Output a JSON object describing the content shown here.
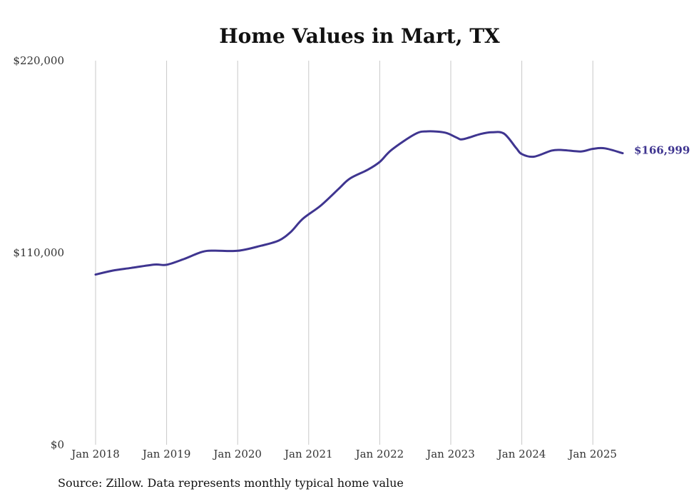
{
  "chart_data": {
    "type": "line",
    "title": "Home Values in Mart, TX",
    "xlabel": "",
    "ylabel": "",
    "ylim": [
      0,
      220000
    ],
    "y_ticks": [
      {
        "value": 0,
        "label": "$0"
      },
      {
        "value": 110000,
        "label": "$110,000"
      },
      {
        "value": 220000,
        "label": "$220,000"
      }
    ],
    "x_ticks": [
      {
        "value": 2018.0,
        "label": "Jan 2018"
      },
      {
        "value": 2019.0,
        "label": "Jan 2019"
      },
      {
        "value": 2020.0,
        "label": "Jan 2020"
      },
      {
        "value": 2021.0,
        "label": "Jan 2021"
      },
      {
        "value": 2022.0,
        "label": "Jan 2022"
      },
      {
        "value": 2023.0,
        "label": "Jan 2023"
      },
      {
        "value": 2024.0,
        "label": "Jan 2024"
      },
      {
        "value": 2025.0,
        "label": "Jan 2025"
      }
    ],
    "xlim": [
      2018.0,
      2025.42
    ],
    "grid": "vertical",
    "line_color": "#3f3590",
    "series": [
      {
        "end_label": "$166,999",
        "points": [
          [
            2018.0,
            97500
          ],
          [
            2018.25,
            99800
          ],
          [
            2018.5,
            101300
          ],
          [
            2018.83,
            103200
          ],
          [
            2019.0,
            103100
          ],
          [
            2019.25,
            106500
          ],
          [
            2019.5,
            110500
          ],
          [
            2019.67,
            111200
          ],
          [
            2020.0,
            111100
          ],
          [
            2020.33,
            114000
          ],
          [
            2020.58,
            117000
          ],
          [
            2020.75,
            122000
          ],
          [
            2020.92,
            129500
          ],
          [
            2021.17,
            137000
          ],
          [
            2021.42,
            146500
          ],
          [
            2021.58,
            152500
          ],
          [
            2021.83,
            157500
          ],
          [
            2022.0,
            162000
          ],
          [
            2022.17,
            169000
          ],
          [
            2022.5,
            178000
          ],
          [
            2022.67,
            179500
          ],
          [
            2022.92,
            178800
          ],
          [
            2023.08,
            176000
          ],
          [
            2023.17,
            175000
          ],
          [
            2023.42,
            178000
          ],
          [
            2023.58,
            179000
          ],
          [
            2023.75,
            178200
          ],
          [
            2023.92,
            170000
          ],
          [
            2024.0,
            166500
          ],
          [
            2024.17,
            165000
          ],
          [
            2024.42,
            168500
          ],
          [
            2024.58,
            168800
          ],
          [
            2024.83,
            168000
          ],
          [
            2025.0,
            169500
          ],
          [
            2025.17,
            169800
          ],
          [
            2025.42,
            166999
          ]
        ]
      }
    ]
  },
  "source_note": "Source: Zillow. Data represents monthly typical home value"
}
